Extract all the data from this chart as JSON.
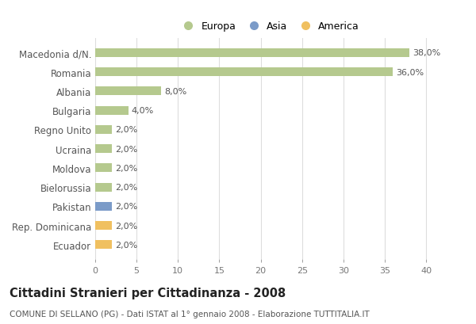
{
  "categories": [
    "Macedonia d/N.",
    "Romania",
    "Albania",
    "Bulgaria",
    "Regno Unito",
    "Ucraina",
    "Moldova",
    "Bielorussia",
    "Pakistan",
    "Rep. Dominicana",
    "Ecuador"
  ],
  "values": [
    38.0,
    36.0,
    8.0,
    4.0,
    2.0,
    2.0,
    2.0,
    2.0,
    2.0,
    2.0,
    2.0
  ],
  "colors": [
    "#b5c98e",
    "#b5c98e",
    "#b5c98e",
    "#b5c98e",
    "#b5c98e",
    "#b5c98e",
    "#b5c98e",
    "#b5c98e",
    "#7b9bc8",
    "#f0c060",
    "#f0c060"
  ],
  "bar_labels": [
    "38,0%",
    "36,0%",
    "8,0%",
    "4,0%",
    "2,0%",
    "2,0%",
    "2,0%",
    "2,0%",
    "2,0%",
    "2,0%",
    "2,0%"
  ],
  "legend_labels": [
    "Europa",
    "Asia",
    "America"
  ],
  "legend_colors": [
    "#b5c98e",
    "#7b9bc8",
    "#f0c060"
  ],
  "xlim": [
    0,
    42
  ],
  "xticks": [
    0,
    5,
    10,
    15,
    20,
    25,
    30,
    35,
    40
  ],
  "title": "Cittadini Stranieri per Cittadinanza - 2008",
  "subtitle": "COMUNE DI SELLANO (PG) - Dati ISTAT al 1° gennaio 2008 - Elaborazione TUTTITALIA.IT",
  "grid_color": "#dddddd",
  "bg_color": "#ffffff",
  "bar_label_fontsize": 8,
  "ylabel_fontsize": 8.5,
  "title_fontsize": 10.5,
  "subtitle_fontsize": 7.5,
  "bar_height": 0.45
}
